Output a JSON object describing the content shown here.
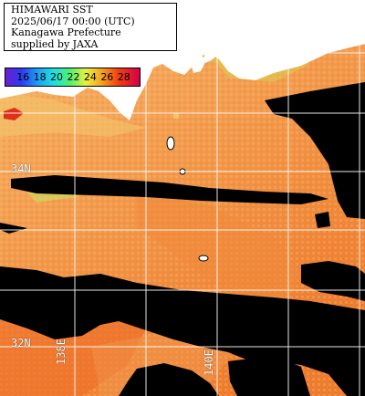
{
  "title": {
    "line1": "HIMAWARI SST",
    "line2": "2025/06/17 00:00 (UTC)",
    "line3": "Kanagawa Prefecture",
    "line4": "supplied by JAXA"
  },
  "colorbar": {
    "labels": [
      "16",
      "18",
      "20",
      "22",
      "24",
      "26",
      "28"
    ]
  },
  "grid_labels": {
    "lat_34": "34N",
    "lat_32": "32N",
    "lon_138": "138E",
    "lon_140": "140E"
  },
  "colors": {
    "land": "#ffffff",
    "cloud": "#000000",
    "sst_warm": "#f5a85a",
    "sst_hot": "#f07828",
    "sst_cool": "#f0d060",
    "gridline": "#ffffff"
  }
}
